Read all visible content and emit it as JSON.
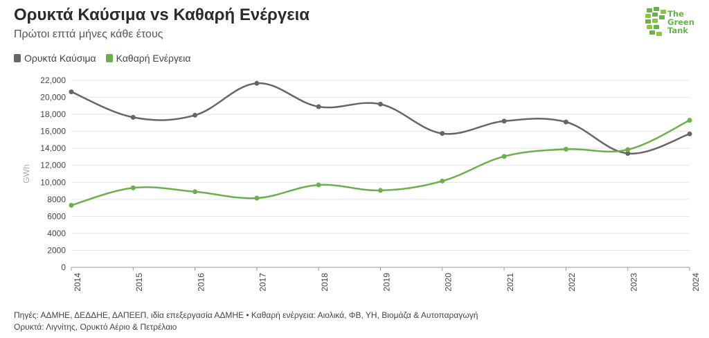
{
  "header": {
    "title": "Ορυκτά Καύσιμα vs Καθαρή Ενέργεια",
    "subtitle": "Πρώτοι επτά μήνες κάθε έτους"
  },
  "logo": {
    "line1": "The",
    "line2": "Green",
    "line3": "Tank"
  },
  "footer": {
    "line1": "Πηγές: ΑΔΜΗΕ, ΔΕΔΔΗΕ, ΔΑΠΕΕΠ, ιδία επεξεργασία ΑΔΜΗΕ • Καθαρή ενέργεια: Αιολικά, ΦΒ, ΥΗ, Βιομάζα & Αυτοπαραγωγή",
    "line2": "Ορυκτά: Λιγνίτης, Ορυκτό Αέριο & Πετρέλαιο"
  },
  "colors": {
    "fossil": "#666666",
    "clean": "#6ab04c"
  },
  "chart_data": {
    "type": "line",
    "title": "Ορυκτά Καύσιμα vs Καθαρή Ενέργεια",
    "subtitle": "Πρώτοι επτά μήνες κάθε έτους",
    "xlabel": "",
    "ylabel": "GWh",
    "ylim": [
      0,
      22000
    ],
    "yticks": [
      0,
      2000,
      4000,
      6000,
      8000,
      10000,
      12000,
      14000,
      16000,
      18000,
      20000,
      22000
    ],
    "ytick_labels": [
      "0",
      "2000",
      "4000",
      "6000",
      "8000",
      "10,000",
      "12,000",
      "14,000",
      "16,000",
      "18,000",
      "20,000",
      "22,000"
    ],
    "categories": [
      "2014",
      "2015",
      "2016",
      "2017",
      "2018",
      "2019",
      "2020",
      "2021",
      "2022",
      "2023",
      "2024"
    ],
    "grid": true,
    "legend_position": "top-left",
    "series": [
      {
        "name": "Ορυκτά Καύσιμα",
        "color": "#666666",
        "values": [
          20650,
          17650,
          17900,
          21650,
          18900,
          19200,
          15750,
          17200,
          17100,
          13400,
          15700
        ]
      },
      {
        "name": "Καθαρή Ενέργεια",
        "color": "#6ab04c",
        "values": [
          7300,
          9350,
          8900,
          8150,
          9700,
          9050,
          10150,
          13050,
          13900,
          13850,
          17300
        ]
      }
    ]
  }
}
